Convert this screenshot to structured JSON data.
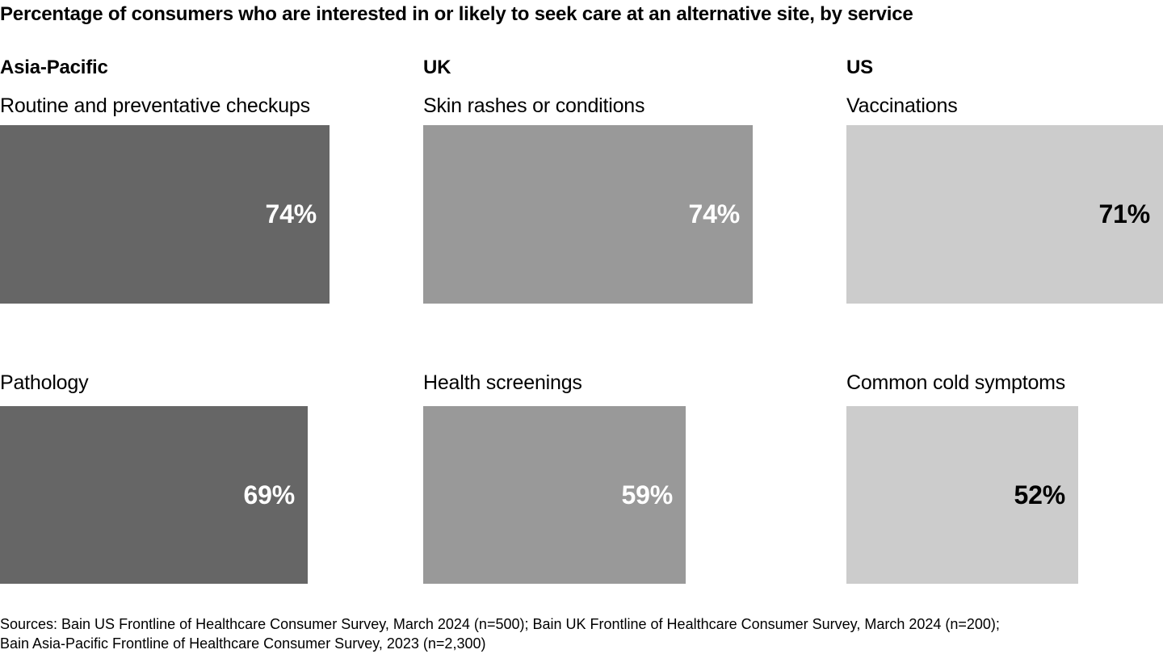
{
  "title": "Percentage of consumers who are interested in or likely to seek care at an alternative site, by service",
  "chart_data": {
    "type": "bar",
    "orientation": "horizontal",
    "unit": "%",
    "value_axis_range": [
      0,
      100
    ],
    "grid": false,
    "legend": false,
    "columns": [
      {
        "region": "Asia-Pacific",
        "bar_color": "#666666",
        "value_color": "#ffffff",
        "bars": [
          {
            "label": "Routine and preventative checkups",
            "value": 74,
            "display": "74%"
          },
          {
            "label": "Pathology",
            "value": 69,
            "display": "69%"
          }
        ]
      },
      {
        "region": "UK",
        "bar_color": "#999999",
        "value_color": "#ffffff",
        "bars": [
          {
            "label": "Skin rashes or conditions",
            "value": 74,
            "display": "74%"
          },
          {
            "label": "Health screenings",
            "value": 59,
            "display": "59%"
          }
        ]
      },
      {
        "region": "US",
        "bar_color": "#cccccc",
        "value_color": "#000000",
        "bars": [
          {
            "label": "Vaccinations",
            "value": 71,
            "display": "71%"
          },
          {
            "label": "Common cold symptoms",
            "value": 52,
            "display": "52%"
          }
        ]
      }
    ]
  },
  "sources": {
    "line1": "Sources: Bain US Frontline of Healthcare Consumer Survey, March 2024 (n=500); Bain UK Frontline of Healthcare Consumer Survey, March 2024 (n=200);",
    "line2": "Bain Asia-Pacific Frontline of Healthcare Consumer Survey, 2023 (n=2,300)"
  }
}
